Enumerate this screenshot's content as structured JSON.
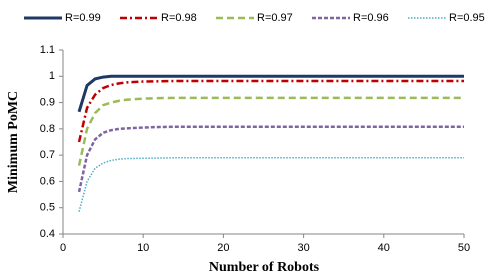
{
  "chart_data": {
    "type": "line",
    "x_label": "Number of Robots",
    "y_label": "Minimum PoMC",
    "x": [
      2,
      3,
      4,
      5,
      6,
      7,
      8,
      10,
      12,
      14,
      16,
      20,
      25,
      30,
      35,
      40,
      45,
      50
    ],
    "series": [
      {
        "name": "R=0.99",
        "color": "#1f3864",
        "style": "solid",
        "values": [
          0.865,
          0.965,
          0.99,
          0.997,
          1,
          1,
          1,
          1,
          1,
          1,
          1,
          1,
          1,
          1,
          1,
          1,
          1,
          1
        ]
      },
      {
        "name": "R=0.98",
        "color": "#c00000",
        "style": "dashdot",
        "values": [
          0.75,
          0.88,
          0.93,
          0.955,
          0.967,
          0.973,
          0.977,
          0.98,
          0.981,
          0.982,
          0.982,
          0.982,
          0.982,
          0.982,
          0.982,
          0.982,
          0.982,
          0.982
        ]
      },
      {
        "name": "R=0.97",
        "color": "#9bbb59",
        "style": "dashed",
        "values": [
          0.66,
          0.8,
          0.86,
          0.89,
          0.9,
          0.907,
          0.911,
          0.915,
          0.917,
          0.918,
          0.918,
          0.918,
          0.918,
          0.918,
          0.918,
          0.918,
          0.918,
          0.918
        ]
      },
      {
        "name": "R=0.96",
        "color": "#8064a2",
        "style": "shortdash",
        "values": [
          0.56,
          0.7,
          0.76,
          0.785,
          0.795,
          0.8,
          0.802,
          0.805,
          0.807,
          0.808,
          0.808,
          0.808,
          0.808,
          0.808,
          0.808,
          0.808,
          0.808,
          0.808
        ]
      },
      {
        "name": "R=0.95",
        "color": "#4bacc6",
        "style": "dotted",
        "values": [
          0.485,
          0.6,
          0.65,
          0.67,
          0.68,
          0.685,
          0.687,
          0.688,
          0.689,
          0.69,
          0.69,
          0.69,
          0.69,
          0.69,
          0.69,
          0.69,
          0.69,
          0.69
        ]
      }
    ],
    "xlim": [
      0,
      50
    ],
    "xticks": [
      0,
      10,
      20,
      30,
      40,
      50
    ],
    "ylim": [
      0.4,
      1.1
    ],
    "yticks": [
      0.4,
      0.5,
      0.6,
      0.7,
      0.8,
      0.9,
      1,
      1.1
    ],
    "grid": false,
    "legend": "top"
  }
}
